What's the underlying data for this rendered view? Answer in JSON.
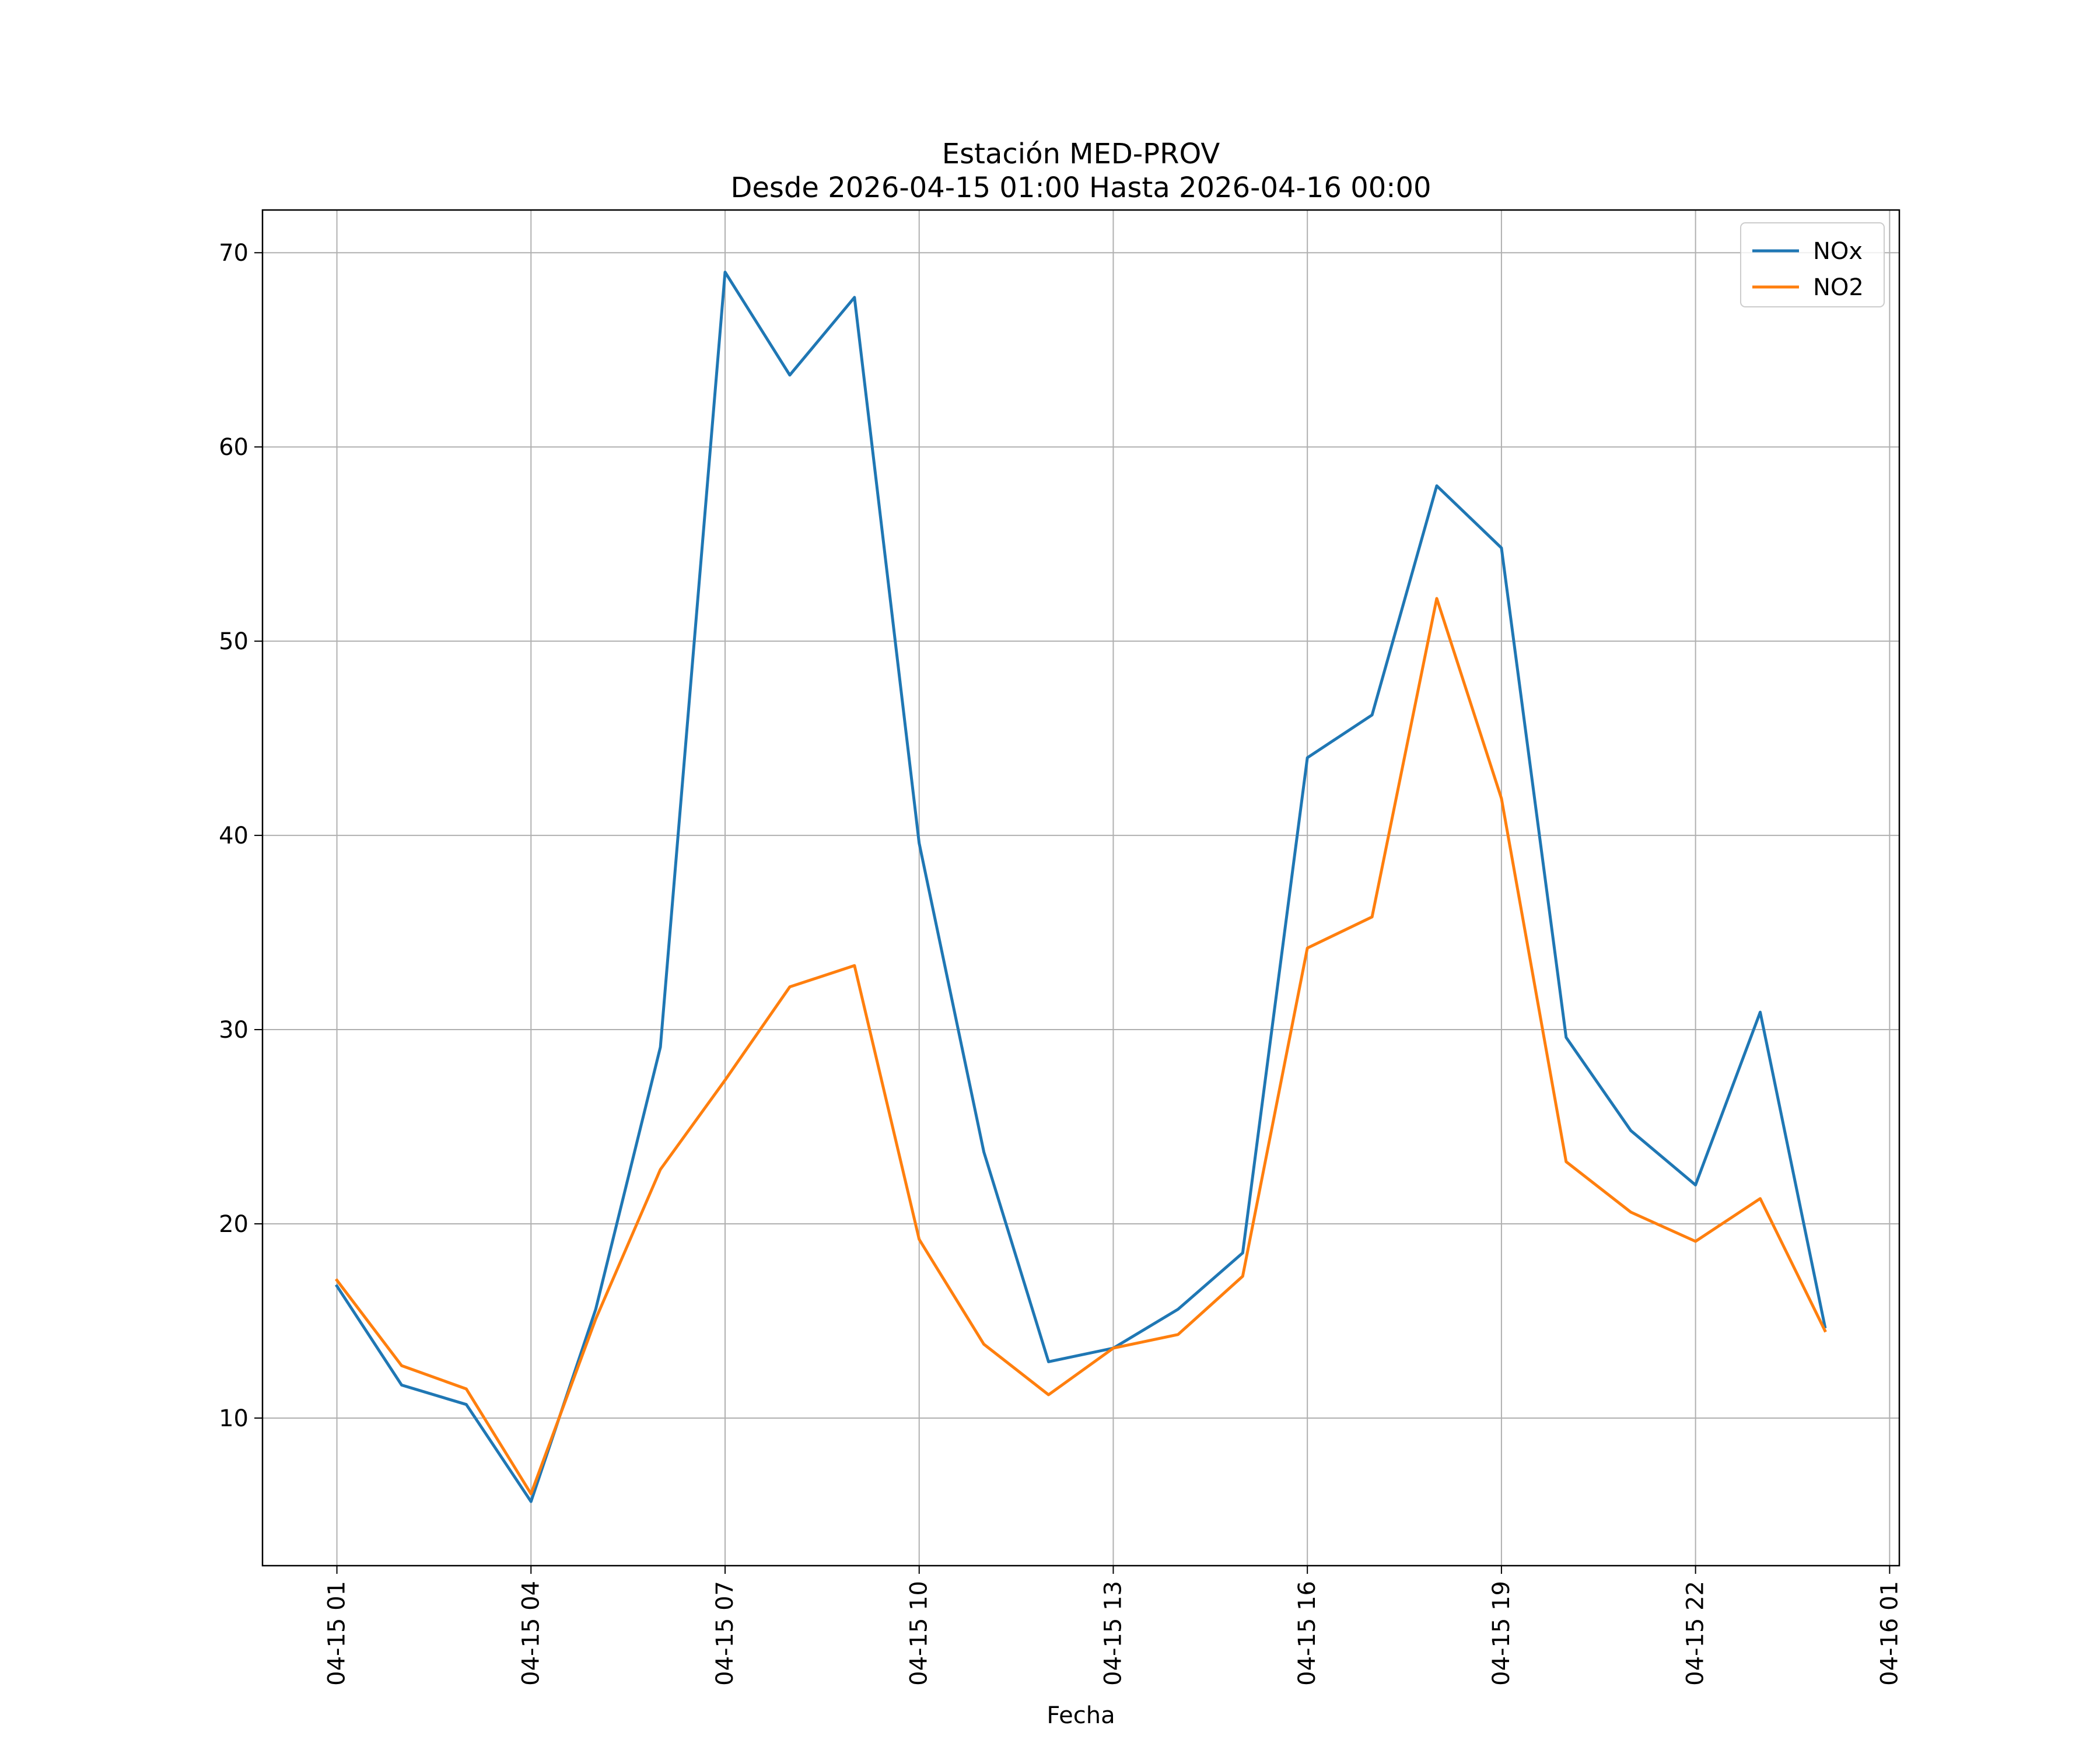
{
  "chart_data": {
    "type": "line",
    "title": "Estación MED-PROV",
    "subtitle": "Desde 2026-04-15 01:00 Hasta 2026-04-16 00:00",
    "xlabel": "Fecha",
    "ylabel": "",
    "x": [
      "2026-04-15 01:00",
      "2026-04-15 02:00",
      "2026-04-15 03:00",
      "2026-04-15 04:00",
      "2026-04-15 05:00",
      "2026-04-15 06:00",
      "2026-04-15 07:00",
      "2026-04-15 08:00",
      "2026-04-15 09:00",
      "2026-04-15 10:00",
      "2026-04-15 11:00",
      "2026-04-15 12:00",
      "2026-04-15 13:00",
      "2026-04-15 14:00",
      "2026-04-15 15:00",
      "2026-04-15 16:00",
      "2026-04-15 17:00",
      "2026-04-15 18:00",
      "2026-04-15 19:00",
      "2026-04-15 20:00",
      "2026-04-15 21:00",
      "2026-04-15 22:00",
      "2026-04-15 23:00",
      "2026-04-16 00:00"
    ],
    "x_ticks": [
      "04-15 01",
      "04-15 04",
      "04-15 07",
      "04-15 10",
      "04-15 13",
      "04-15 16",
      "04-15 19",
      "04-15 22",
      "04-16 01"
    ],
    "xlim": [
      "2026-04-14 23:51",
      "2026-04-16 01:09"
    ],
    "y_ticks": [
      10,
      20,
      30,
      40,
      50,
      60,
      70
    ],
    "ylim": [
      2.4,
      72.2
    ],
    "grid": true,
    "legend_position": "top-right",
    "series": [
      {
        "name": "NOx",
        "color": "#1f77b4",
        "values": [
          16.8,
          11.7,
          10.7,
          5.7,
          15.6,
          29.1,
          69.0,
          63.7,
          67.7,
          39.6,
          23.7,
          12.9,
          13.6,
          15.6,
          18.5,
          44.0,
          46.2,
          58.0,
          54.8,
          29.6,
          24.8,
          22.0,
          30.9,
          14.7
        ]
      },
      {
        "name": "NO2",
        "color": "#ff7f0e",
        "values": [
          17.1,
          12.7,
          11.5,
          6.1,
          15.1,
          22.8,
          27.4,
          32.2,
          33.3,
          19.2,
          13.8,
          11.2,
          13.6,
          14.3,
          17.3,
          34.2,
          35.8,
          52.2,
          41.9,
          23.2,
          20.6,
          19.1,
          21.3,
          14.5
        ]
      }
    ]
  }
}
